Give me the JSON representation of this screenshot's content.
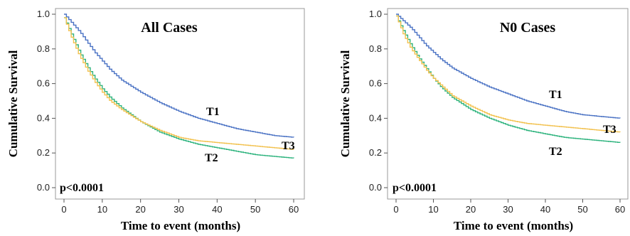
{
  "colors": {
    "T1": "#4a72c4",
    "T2": "#2db37d",
    "T3": "#f2c14e",
    "axis": "#555555"
  },
  "chart_data": [
    {
      "type": "line",
      "title": "All Cases",
      "xlabel": "Time to event (months)",
      "ylabel": "Cumulative Survival",
      "xlim": [
        0,
        60
      ],
      "ylim": [
        0,
        1
      ],
      "xticks": [
        "0",
        "10",
        "20",
        "30",
        "40",
        "50",
        "60"
      ],
      "yticks": [
        "0.0",
        "0.2",
        "0.4",
        "0.6",
        "0.8",
        "1.0"
      ],
      "annotation": "p<0.0001",
      "series": [
        {
          "name": "T1",
          "x": [
            0,
            2,
            4,
            6,
            8,
            10,
            12,
            15,
            20,
            25,
            30,
            35,
            40,
            45,
            50,
            55,
            60
          ],
          "y": [
            1.0,
            0.95,
            0.9,
            0.84,
            0.78,
            0.73,
            0.68,
            0.62,
            0.55,
            0.49,
            0.44,
            0.4,
            0.37,
            0.34,
            0.32,
            0.3,
            0.29
          ]
        },
        {
          "name": "T2",
          "x": [
            0,
            2,
            4,
            6,
            8,
            10,
            12,
            15,
            20,
            25,
            30,
            35,
            40,
            45,
            50,
            55,
            60
          ],
          "y": [
            0.98,
            0.88,
            0.78,
            0.7,
            0.63,
            0.57,
            0.52,
            0.46,
            0.38,
            0.32,
            0.28,
            0.25,
            0.23,
            0.21,
            0.19,
            0.18,
            0.17
          ]
        },
        {
          "name": "T3",
          "x": [
            0,
            2,
            4,
            6,
            8,
            10,
            12,
            15,
            20,
            25,
            30,
            35,
            40,
            45,
            50,
            55,
            60
          ],
          "y": [
            0.98,
            0.86,
            0.76,
            0.68,
            0.61,
            0.55,
            0.5,
            0.45,
            0.38,
            0.33,
            0.29,
            0.27,
            0.26,
            0.25,
            0.24,
            0.23,
            0.22
          ]
        }
      ],
      "series_labels": [
        "T1",
        "T2",
        "T3"
      ]
    },
    {
      "type": "line",
      "title": "N0 Cases",
      "xlabel": "Time to event (months)",
      "ylabel": "Cumulative Survival",
      "xlim": [
        0,
        60
      ],
      "ylim": [
        0,
        1
      ],
      "xticks": [
        "0",
        "10",
        "20",
        "30",
        "40",
        "50",
        "60"
      ],
      "yticks": [
        "0.0",
        "0.2",
        "0.4",
        "0.6",
        "0.8",
        "1.0"
      ],
      "annotation": "p<0.0001",
      "series": [
        {
          "name": "T1",
          "x": [
            0,
            2,
            4,
            6,
            8,
            10,
            12,
            15,
            20,
            25,
            30,
            35,
            40,
            45,
            50,
            55,
            60
          ],
          "y": [
            1.0,
            0.96,
            0.92,
            0.87,
            0.82,
            0.78,
            0.74,
            0.69,
            0.63,
            0.58,
            0.54,
            0.5,
            0.47,
            0.44,
            0.42,
            0.41,
            0.4
          ]
        },
        {
          "name": "T2",
          "x": [
            0,
            2,
            4,
            6,
            8,
            10,
            12,
            15,
            20,
            25,
            30,
            35,
            40,
            45,
            50,
            55,
            60
          ],
          "y": [
            0.99,
            0.9,
            0.82,
            0.75,
            0.69,
            0.63,
            0.58,
            0.52,
            0.45,
            0.4,
            0.36,
            0.33,
            0.31,
            0.29,
            0.28,
            0.27,
            0.26
          ]
        },
        {
          "name": "T3",
          "x": [
            0,
            2,
            4,
            6,
            8,
            10,
            12,
            15,
            20,
            25,
            30,
            35,
            40,
            45,
            50,
            55,
            60
          ],
          "y": [
            0.99,
            0.88,
            0.8,
            0.74,
            0.68,
            0.63,
            0.59,
            0.53,
            0.47,
            0.42,
            0.39,
            0.37,
            0.36,
            0.35,
            0.34,
            0.33,
            0.32
          ]
        }
      ],
      "series_labels": [
        "T1",
        "T3",
        "T2"
      ]
    }
  ]
}
